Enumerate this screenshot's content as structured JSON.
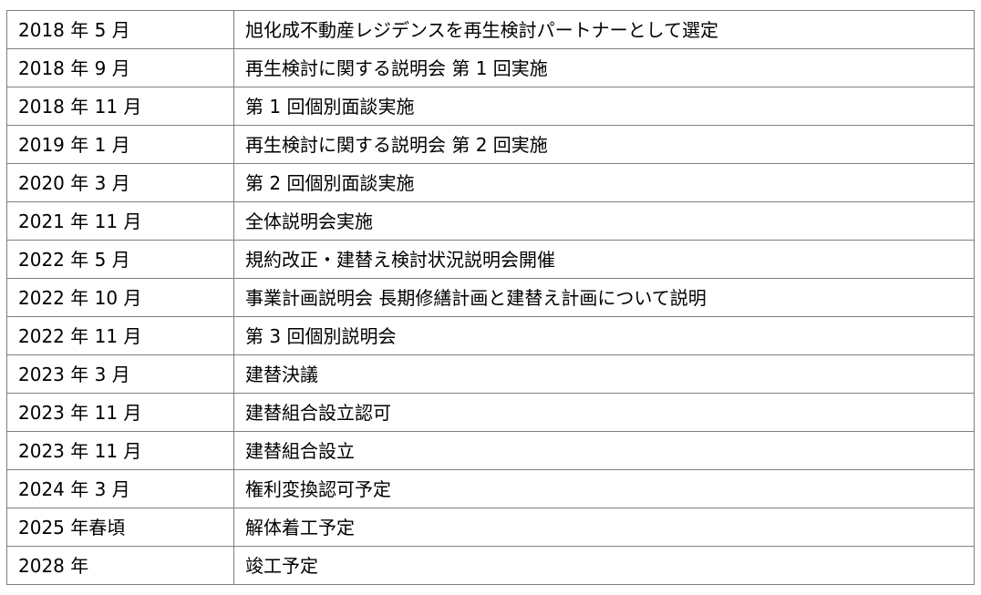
{
  "rows": [
    {
      "date": "2018 年 5 月",
      "event": "旭化成不動産レジデンスを再生検討パートナーとして選定"
    },
    {
      "date": "2018 年 9 月",
      "event": "再生検討に関する説明会 第 1 回実施"
    },
    {
      "date": "2018 年 11 月",
      "event": "第 1 回個別面談実施"
    },
    {
      "date": "2019 年 1 月",
      "event": "再生検討に関する説明会 第 2 回実施"
    },
    {
      "date": "2020 年 3 月",
      "event": "第 2 回個別面談実施"
    },
    {
      "date": "2021 年 11 月",
      "event": "全体説明会実施"
    },
    {
      "date": "2022 年 5 月",
      "event": "規約改正・建替え検討状況説明会開催"
    },
    {
      "date": "2022 年 10 月",
      "event": "事業計画説明会 長期修繕計画と建替え計画について説明"
    },
    {
      "date": "2022 年 11 月",
      "event": "第 3 回個別説明会"
    },
    {
      "date": "2023 年 3 月",
      "event": "建替決議"
    },
    {
      "date": "2023 年 11 月",
      "event": "建替組合設立認可"
    },
    {
      "date": "2023 年 11 月",
      "event": "建替組合設立"
    },
    {
      "date": "2024 年 3 月",
      "event": "権利変換認可予定"
    },
    {
      "date": "2025 年春頃",
      "event": "解体着工予定"
    },
    {
      "date": "2028 年",
      "event": "竣工予定"
    }
  ]
}
